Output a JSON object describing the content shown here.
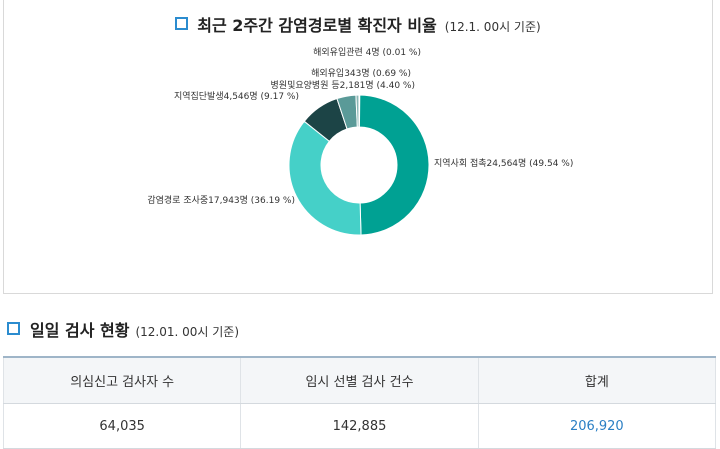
{
  "chart_panel": {
    "title": "최근 2주간 감염경로별 확진자 비율",
    "title_note": "(12.1. 00시 기준)"
  },
  "chart_data": {
    "type": "pie",
    "donut": true,
    "title": "최근 2주간 감염경로별 확진자 비율",
    "subtitle": "(12.1. 00시 기준)",
    "slices": [
      {
        "name": "지역사회 접촉",
        "count": 24564,
        "percent": 49.54,
        "label": "지역사회 접촉24,564명 (49.54 %)",
        "color": "#00a193"
      },
      {
        "name": "감염경로 조사중",
        "count": 17943,
        "percent": 36.19,
        "label": "감염경로 조사중17,943명 (36.19 %)",
        "color": "#45d0c8"
      },
      {
        "name": "지역집단발생",
        "count": 4546,
        "percent": 9.17,
        "label": "지역집단발생4,546명 (9.17 %)",
        "color": "#1c4446"
      },
      {
        "name": "병원및요양병원 등",
        "count": 2181,
        "percent": 4.4,
        "label": "병원및요양병원 등2,181명 (4.40 %)",
        "color": "#5a9a98"
      },
      {
        "name": "해외유입",
        "count": 343,
        "percent": 0.69,
        "label": "해외유입343명 (0.69 %)",
        "color": "#8ab8b6"
      },
      {
        "name": "해외유입관련",
        "count": 4,
        "percent": 0.01,
        "label": "해외유입관련 4명 (0.01 %)",
        "color": "#b8d4d3"
      }
    ]
  },
  "section": {
    "title": "일일 검사 현황",
    "note": "(12.01. 00시 기준)"
  },
  "table": {
    "headers": [
      "의심신고 검사자 수",
      "임시 선별 검사 건수",
      "합계"
    ],
    "row": [
      "64,035",
      "142,885",
      "206,920"
    ]
  }
}
